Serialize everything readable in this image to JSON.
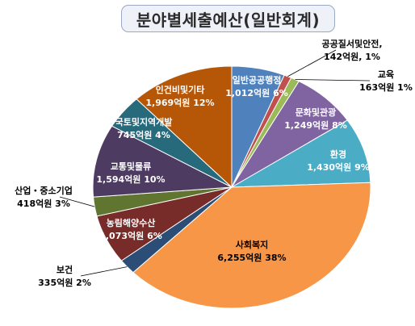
{
  "title": "분야별세출예산(일반회계)",
  "chart_data": {
    "type": "pie",
    "title": "분야별세출예산(일반회계)",
    "unit": "억원",
    "slices": [
      {
        "name": "일반공공행정",
        "value": 1012,
        "value_text": "1,012억원",
        "pct_text": "6%",
        "color": "#4f81bd"
      },
      {
        "name": "공공질서및안전,",
        "value": 142,
        "value_text": "142억원,",
        "pct_text": "1%",
        "color": "#c0504d"
      },
      {
        "name": "교육",
        "value": 163,
        "value_text": "163억원",
        "pct_text": "1%",
        "color": "#9bbb59"
      },
      {
        "name": "문화및관광",
        "value": 1249,
        "value_text": "1,249억원",
        "pct_text": "8%",
        "color": "#8064a2"
      },
      {
        "name": "환경",
        "value": 1430,
        "value_text": "1,430억원",
        "pct_text": "9%",
        "color": "#4bacc6"
      },
      {
        "name": "사회복지",
        "value": 6255,
        "value_text": "6,255억원",
        "pct_text": "38%",
        "color": "#f79646"
      },
      {
        "name": "보건",
        "value": 335,
        "value_text": "335억원",
        "pct_text": "2%",
        "color": "#2c4d75"
      },
      {
        "name": "농림해양수산",
        "value": 1073,
        "value_text": "1,073억원",
        "pct_text": "6%",
        "color": "#772c2a"
      },
      {
        "name": "산업・중소기업",
        "value": 418,
        "value_text": "418억원",
        "pct_text": "3%",
        "color": "#5f7530"
      },
      {
        "name": "교통및물류",
        "value": 1594,
        "value_text": "1,594억원",
        "pct_text": "10%",
        "color": "#4d3b62"
      },
      {
        "name": "국토및지역개발",
        "value": 745,
        "value_text": "745억원",
        "pct_text": "4%",
        "color": "#276a7c"
      },
      {
        "name": "인건비및기타",
        "value": 1969,
        "value_text": "1,969억원",
        "pct_text": "12%",
        "color": "#b65708"
      }
    ]
  }
}
